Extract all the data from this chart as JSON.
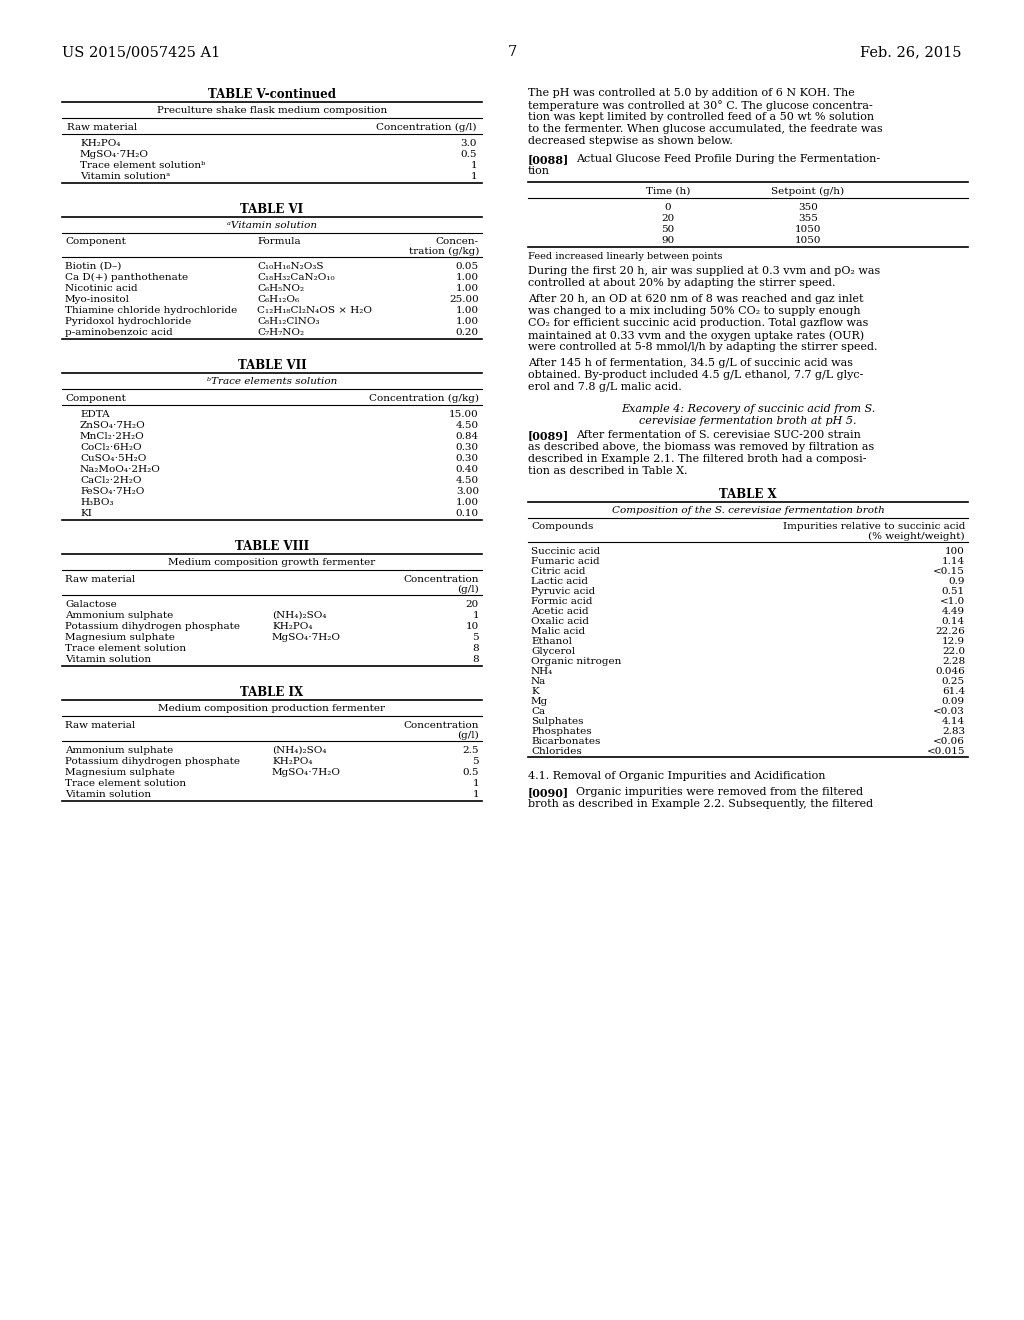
{
  "page_number": "7",
  "patent_number": "US 2015/0057425 A1",
  "patent_date": "Feb. 26, 2015",
  "bg_color": "#ffffff",
  "text_color": "#000000",
  "left_column": {
    "table_v_continued": {
      "title": "TABLE V-continued",
      "subtitle": "Preculture shake flask medium composition",
      "col1_header": "Raw material",
      "col2_header": "Concentration (g/l)",
      "rows": [
        [
          "KH₂PO₄",
          "3.0"
        ],
        [
          "MgSO₄⋅7H₂O",
          "0.5"
        ],
        [
          "Trace element solutionᵇ",
          "1"
        ],
        [
          "Vitamin solutionᵃ",
          "1"
        ]
      ]
    },
    "table_vi": {
      "title": "TABLE VI",
      "subtitle": "ᵃVitamin solution",
      "col1_header": "Component",
      "col2_header": "Formula",
      "col3_header_line1": "Concen-",
      "col3_header_line2": "tration (g/kg)",
      "rows": [
        [
          "Biotin (D–)",
          "C₁₀H₁₆N₂O₃S",
          "0.05"
        ],
        [
          "Ca D(+) panthothenate",
          "C₁₈H₃₂CaN₂O₁₀",
          "1.00"
        ],
        [
          "Nicotinic acid",
          "C₆H₅NO₂",
          "1.00"
        ],
        [
          "Myo-inositol",
          "C₆H₁₂O₆",
          "25.00"
        ],
        [
          "Thiamine chloride hydrochloride",
          "C₁₂H₁₈Cl₂N₄OS × H₂O",
          "1.00"
        ],
        [
          "Pyridoxol hydrochloride",
          "C₈H₁₂ClNO₃",
          "1.00"
        ],
        [
          "p-aminobenzoic acid",
          "C₇H₇NO₂",
          "0.20"
        ]
      ]
    },
    "table_vii": {
      "title": "TABLE VII",
      "subtitle": "ᵇTrace elements solution",
      "col1_header": "Component",
      "col2_header": "Concentration (g/kg)",
      "rows": [
        [
          "EDTA",
          "15.00"
        ],
        [
          "ZnSO₄⋅7H₂O",
          "4.50"
        ],
        [
          "MnCl₂⋅2H₂O",
          "0.84"
        ],
        [
          "CoCl₂⋅6H₂O",
          "0.30"
        ],
        [
          "CuSO₄⋅5H₂O",
          "0.30"
        ],
        [
          "Na₂MoO₄⋅2H₂O",
          "0.40"
        ],
        [
          "CaCl₂⋅2H₂O",
          "4.50"
        ],
        [
          "FeSO₄⋅7H₂O",
          "3.00"
        ],
        [
          "H₃BO₃",
          "1.00"
        ],
        [
          "KI",
          "0.10"
        ]
      ]
    },
    "table_viii": {
      "title": "TABLE VIII",
      "subtitle": "Medium composition growth fermenter",
      "col1_header": "Raw material",
      "rows": [
        [
          "Galactose",
          "",
          "20"
        ],
        [
          "Ammonium sulphate",
          "(NH₄)₂SO₄",
          "1"
        ],
        [
          "Potassium dihydrogen phosphate",
          "KH₂PO₄",
          "10"
        ],
        [
          "Magnesium sulphate",
          "MgSO₄⋅7H₂O",
          "5"
        ],
        [
          "Trace element solution",
          "",
          "8"
        ],
        [
          "Vitamin solution",
          "",
          "8"
        ]
      ]
    },
    "table_ix": {
      "title": "TABLE IX",
      "subtitle": "Medium composition production fermenter",
      "col1_header": "Raw material",
      "rows": [
        [
          "Ammonium sulphate",
          "(NH₄)₂SO₄",
          "2.5"
        ],
        [
          "Potassium dihydrogen phosphate",
          "KH₂PO₄",
          "5"
        ],
        [
          "Magnesium sulphate",
          "MgSO₄⋅7H₂O",
          "0.5"
        ],
        [
          "Trace element solution",
          "",
          "1"
        ],
        [
          "Vitamin solution",
          "",
          "1"
        ]
      ]
    }
  },
  "right_column": {
    "paragraph1_lines": [
      "The pH was controlled at 5.0 by addition of 6 N KOH. The",
      "temperature was controlled at 30° C. The glucose concentra-",
      "tion was kept limited by controlled feed of a 50 wt % solution",
      "to the fermenter. When glucose accumulated, the feedrate was",
      "decreased stepwise as shown below."
    ],
    "ref0088": "[0088]",
    "ref0088_lines": [
      "Actual Glucose Feed Profile During the Fermentation",
      "tion"
    ],
    "glucose_table": {
      "col1_header": "Time (h)",
      "col2_header": "Setpoint (g/h)",
      "rows": [
        [
          "0",
          "350"
        ],
        [
          "20",
          "355"
        ],
        [
          "50",
          "1050"
        ],
        [
          "90",
          "1050"
        ]
      ],
      "footnote": "Feed increased linearly between points"
    },
    "paragraph2_lines": [
      "During the first 20 h, air was supplied at 0.3 vvm and pO₂ was",
      "controlled at about 20% by adapting the stirrer speed."
    ],
    "paragraph3_lines": [
      "After 20 h, an OD at 620 nm of 8 was reached and gaz inlet",
      "was changed to a mix including 50% CO₂ to supply enough",
      "CO₂ for efficient succinic acid production. Total gazflow was",
      "maintained at 0.33 vvm and the oxygen uptake rates (OUR)",
      "were controlled at 5-8 mmol/l/h by adapting the stirrer speed."
    ],
    "paragraph4_lines": [
      "After 145 h of fermentation, 34.5 g/L of succinic acid was",
      "obtained. By-product included 4.5 g/L ethanol, 7.7 g/L glyc-",
      "erol and 7.8 g/L malic acid."
    ],
    "example4_line1": "Example 4: Recovery of succinic acid from S.",
    "example4_line2": "cerevisiae fermentation broth at pH 5.",
    "ref0089": "[0089]",
    "ref0089_lines": [
      "After fermentation of S. cerevisiae SUC-200 strain",
      "as described above, the biomass was removed by filtration as",
      "described in Example 2.1. The filtered broth had a composi-",
      "tion as described in Table X."
    ],
    "table_x": {
      "title": "TABLE X",
      "subtitle": "Composition of the S. cerevisiae fermentation broth",
      "col1_header": "Compounds",
      "col2_header_line1": "Impurities relative to succinic acid",
      "col2_header_line2": "(% weight/weight)",
      "rows": [
        [
          "Succinic acid",
          "100"
        ],
        [
          "Fumaric acid",
          "1.14"
        ],
        [
          "Citric acid",
          "<0.15"
        ],
        [
          "Lactic acid",
          "0.9"
        ],
        [
          "Pyruvic acid",
          "0.51"
        ],
        [
          "Formic acid",
          "<1.0"
        ],
        [
          "Acetic acid",
          "4.49"
        ],
        [
          "Oxalic acid",
          "0.14"
        ],
        [
          "Malic acid",
          "22.26"
        ],
        [
          "Ethanol",
          "12.9"
        ],
        [
          "Glycerol",
          "22.0"
        ],
        [
          "Organic nitrogen",
          "2.28"
        ],
        [
          "NH₄",
          "0.046"
        ],
        [
          "Na",
          "0.25"
        ],
        [
          "K",
          "61.4"
        ],
        [
          "Mg",
          "0.09"
        ],
        [
          "Ca",
          "<0.03"
        ],
        [
          "Sulphates",
          "4.14"
        ],
        [
          "Phosphates",
          "2.83"
        ],
        [
          "Bicarbonates",
          "<0.06"
        ],
        [
          "Chlorides",
          "<0.015"
        ]
      ]
    },
    "section_title": "4.1. Removal of Organic Impurities and Acidification",
    "ref0090": "[0090]",
    "ref0090_lines": [
      "Organic impurities were removed from the filtered",
      "broth as described in Example 2.2. Subsequently, the filtered"
    ]
  }
}
